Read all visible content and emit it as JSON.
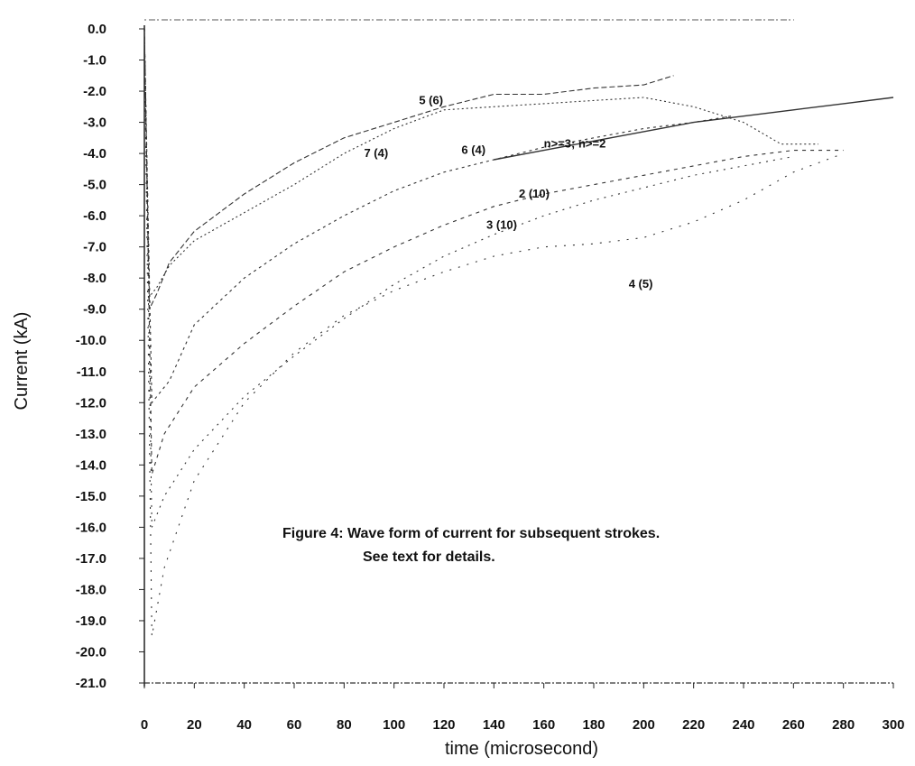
{
  "chart_data": {
    "type": "line",
    "title": "",
    "xlabel": "time (microsecond)",
    "ylabel": "Current (kA)",
    "xlim": [
      0,
      300
    ],
    "ylim": [
      -21.0,
      0.0
    ],
    "x_ticks": [
      "0",
      "20",
      "40",
      "60",
      "80",
      "100",
      "120",
      "140",
      "160",
      "180",
      "200",
      "220",
      "240",
      "260",
      "280",
      "300"
    ],
    "y_ticks": [
      "0.0",
      "-1.0",
      "-2.0",
      "-3.0",
      "-4.0",
      "-5.0",
      "-6.0",
      "-7.0",
      "-8.0",
      "-9.0",
      "-10.0",
      "-11.0",
      "-12.0",
      "-13.0",
      "-14.0",
      "-15.0",
      "-16.0",
      "-17.0",
      "-18.0",
      "-19.0",
      "-20.0",
      "-21.0"
    ],
    "grid": false,
    "legend": "none",
    "caption": [
      "Figure 4: Wave form of current for  subsequent strokes.",
      "See text for details."
    ],
    "series": [
      {
        "name": "5 (6)",
        "label_at": [
          110,
          -2.3
        ],
        "points": [
          [
            0,
            0
          ],
          [
            2,
            -9.0
          ],
          [
            5,
            -8.5
          ],
          [
            10,
            -7.5
          ],
          [
            20,
            -6.5
          ],
          [
            40,
            -5.3
          ],
          [
            60,
            -4.3
          ],
          [
            80,
            -3.5
          ],
          [
            100,
            -3.0
          ],
          [
            120,
            -2.5
          ],
          [
            140,
            -2.1
          ],
          [
            160,
            -2.1
          ],
          [
            180,
            -1.9
          ],
          [
            200,
            -1.8
          ],
          [
            212,
            -1.5
          ]
        ]
      },
      {
        "name": "7 (4)",
        "label_at": [
          88,
          -4.0
        ],
        "points": [
          [
            0,
            0
          ],
          [
            2,
            -8.6
          ],
          [
            5,
            -8.3
          ],
          [
            10,
            -7.6
          ],
          [
            20,
            -6.8
          ],
          [
            40,
            -5.9
          ],
          [
            60,
            -5.0
          ],
          [
            80,
            -4.0
          ],
          [
            100,
            -3.2
          ],
          [
            120,
            -2.6
          ],
          [
            140,
            -2.5
          ],
          [
            160,
            -2.4
          ],
          [
            180,
            -2.3
          ],
          [
            200,
            -2.2
          ],
          [
            220,
            -2.5
          ],
          [
            240,
            -3.0
          ],
          [
            255,
            -3.7
          ],
          [
            270,
            -3.7
          ]
        ]
      },
      {
        "name": "6 (4)",
        "label_at": [
          127,
          -3.9
        ],
        "points": [
          [
            0,
            0
          ],
          [
            3,
            -12.0
          ],
          [
            10,
            -11.3
          ],
          [
            20,
            -9.5
          ],
          [
            40,
            -8.0
          ],
          [
            60,
            -6.9
          ],
          [
            80,
            -6.0
          ],
          [
            100,
            -5.2
          ],
          [
            120,
            -4.6
          ],
          [
            140,
            -4.2
          ],
          [
            160,
            -3.8
          ],
          [
            180,
            -3.5
          ],
          [
            200,
            -3.2
          ],
          [
            220,
            -3.0
          ],
          [
            235,
            -2.8
          ]
        ]
      },
      {
        "name": "n>=3; n>=2",
        "label_at": [
          160,
          -3.7
        ],
        "points": [
          [
            140,
            -4.2
          ],
          [
            160,
            -3.9
          ],
          [
            180,
            -3.6
          ],
          [
            200,
            -3.3
          ],
          [
            220,
            -3.0
          ],
          [
            240,
            -2.8
          ],
          [
            260,
            -2.6
          ],
          [
            280,
            -2.4
          ],
          [
            300,
            -2.2
          ]
        ]
      },
      {
        "name": "2 (10)",
        "label_at": [
          150,
          -5.3
        ],
        "points": [
          [
            0,
            0
          ],
          [
            3,
            -14.3
          ],
          [
            8,
            -13.0
          ],
          [
            20,
            -11.5
          ],
          [
            40,
            -10.1
          ],
          [
            60,
            -8.9
          ],
          [
            80,
            -7.8
          ],
          [
            100,
            -7.0
          ],
          [
            120,
            -6.3
          ],
          [
            140,
            -5.7
          ],
          [
            160,
            -5.3
          ],
          [
            180,
            -5.0
          ],
          [
            200,
            -4.7
          ],
          [
            220,
            -4.4
          ],
          [
            240,
            -4.1
          ],
          [
            260,
            -3.9
          ],
          [
            280,
            -3.9
          ]
        ]
      },
      {
        "name": "3 (10)",
        "label_at": [
          137,
          -6.3
        ],
        "points": [
          [
            0,
            0
          ],
          [
            3,
            -16.0
          ],
          [
            8,
            -15.0
          ],
          [
            20,
            -13.5
          ],
          [
            40,
            -11.8
          ],
          [
            60,
            -10.5
          ],
          [
            80,
            -9.3
          ],
          [
            100,
            -8.2
          ],
          [
            120,
            -7.3
          ],
          [
            140,
            -6.6
          ],
          [
            160,
            -6.0
          ],
          [
            180,
            -5.5
          ],
          [
            200,
            -5.1
          ],
          [
            220,
            -4.7
          ],
          [
            240,
            -4.4
          ],
          [
            260,
            -4.1
          ]
        ]
      },
      {
        "name": "4 (5)",
        "label_at": [
          194,
          -8.2
        ],
        "points": [
          [
            0,
            0
          ],
          [
            3,
            -19.5
          ],
          [
            8,
            -17.3
          ],
          [
            20,
            -14.5
          ],
          [
            40,
            -12.0
          ],
          [
            60,
            -10.4
          ],
          [
            80,
            -9.2
          ],
          [
            100,
            -8.4
          ],
          [
            120,
            -7.8
          ],
          [
            140,
            -7.3
          ],
          [
            160,
            -7.0
          ],
          [
            180,
            -6.9
          ],
          [
            200,
            -6.7
          ],
          [
            220,
            -6.2
          ],
          [
            240,
            -5.5
          ],
          [
            260,
            -4.6
          ],
          [
            280,
            -4.0
          ]
        ]
      }
    ]
  }
}
